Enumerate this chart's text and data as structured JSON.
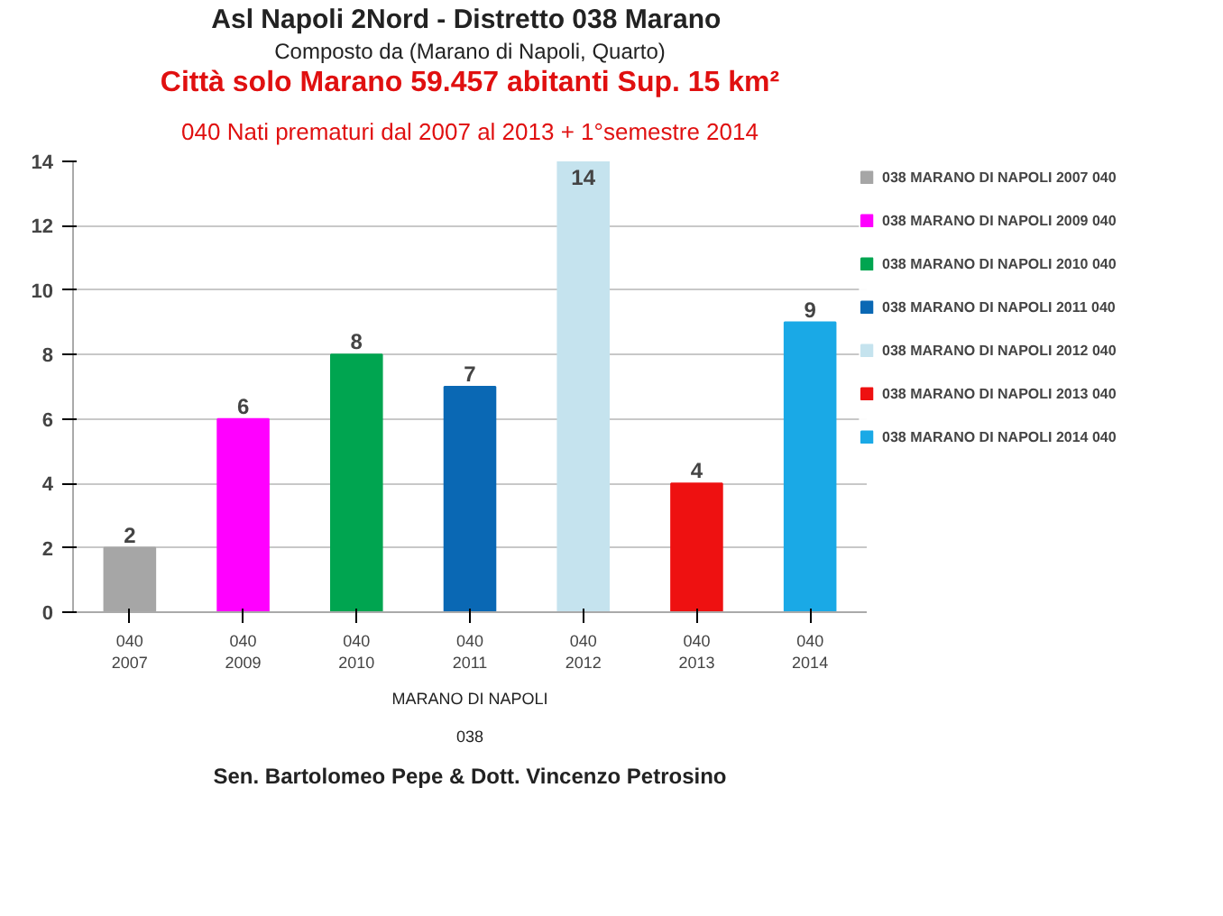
{
  "chart_data": {
    "type": "bar",
    "title": "Asl Napoli 2Nord - Distretto 038  Marano",
    "subtitle": "Composto da (Marano di Napoli, Quarto)",
    "categories": [
      "040\n2007",
      "040\n2009",
      "040\n2010",
      "040\n2011",
      "040\n2012",
      "040\n2013",
      "040\n2014"
    ],
    "series": [
      {
        "name": "038 MARANO DI NAPOLI 2007 040",
        "color": "#a6a6a6",
        "values": [
          2,
          null,
          null,
          null,
          null,
          null,
          null
        ]
      },
      {
        "name": "038 MARANO DI NAPOLI 2009 040",
        "color": "#ff00ff",
        "values": [
          null,
          6,
          null,
          null,
          null,
          null,
          null
        ]
      },
      {
        "name": "038 MARANO DI NAPOLI 2010 040",
        "color": "#00a550",
        "values": [
          null,
          null,
          8,
          null,
          null,
          null,
          null
        ]
      },
      {
        "name": "038 MARANO DI NAPOLI 2011 040",
        "color": "#0a68b4",
        "values": [
          null,
          null,
          null,
          7,
          null,
          null,
          null
        ]
      },
      {
        "name": "038 MARANO DI NAPOLI 2012 040",
        "color": "#c5e3ee",
        "values": [
          null,
          null,
          null,
          null,
          14,
          null,
          null
        ]
      },
      {
        "name": "038 MARANO DI NAPOLI 2013 040",
        "color": "#ee1111",
        "values": [
          null,
          null,
          null,
          null,
          null,
          4,
          null
        ]
      },
      {
        "name": "038 MARANO DI NAPOLI 2014 040",
        "color": "#1aa9e6",
        "values": [
          null,
          null,
          null,
          null,
          null,
          null,
          9
        ]
      }
    ],
    "ylim": [
      0,
      14
    ],
    "yticks": [
      0,
      2,
      4,
      6,
      8,
      10,
      12,
      14
    ],
    "grid": "y",
    "legend": "right",
    "data_labels": true,
    "annotations": [
      "Città solo Marano 59.457 abitanti Sup. 15 km²",
      "040 Nati prematuri dal 2007 al 2013 + 1°semestre 2014",
      "MARANO DI NAPOLI",
      "038",
      "Sen. Bartolomeo Pepe & Dott. Vincenzo Petrosino"
    ]
  }
}
